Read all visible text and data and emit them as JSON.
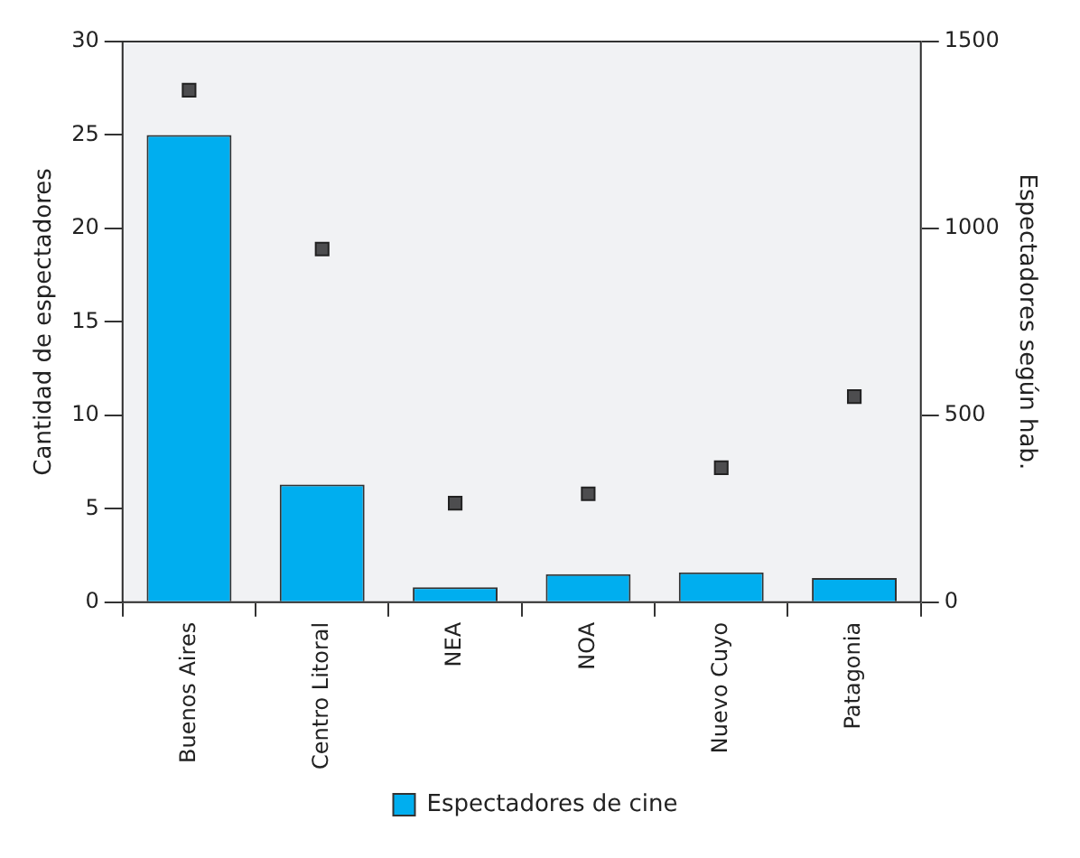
{
  "chart_data": {
    "type": "bar",
    "ylabel": "Cantidad de espectadores",
    "y2label": "Espectadores según hab.",
    "categories": [
      "Buenos Aires",
      "Centro Litoral",
      "NEA",
      "NOA",
      "Nuevo Cuyo",
      "Patagonia"
    ],
    "series": [
      {
        "name": "Espectadores de cine",
        "color": "#00aeef",
        "values": [
          25,
          6.3,
          0.8,
          1.5,
          1.6,
          1.3
        ]
      },
      {
        "type": "scatter",
        "axis": "y2",
        "marker": "square",
        "color": "#4d4d4f",
        "values": [
          1370,
          945,
          265,
          290,
          360,
          550
        ]
      }
    ],
    "ylim": [
      0,
      30
    ],
    "yticks": [
      0,
      5,
      10,
      15,
      20,
      25,
      30
    ],
    "y2lim": [
      0,
      1500
    ],
    "y2ticks": [
      0,
      500,
      1000,
      1500
    ],
    "legend": "bottom"
  }
}
